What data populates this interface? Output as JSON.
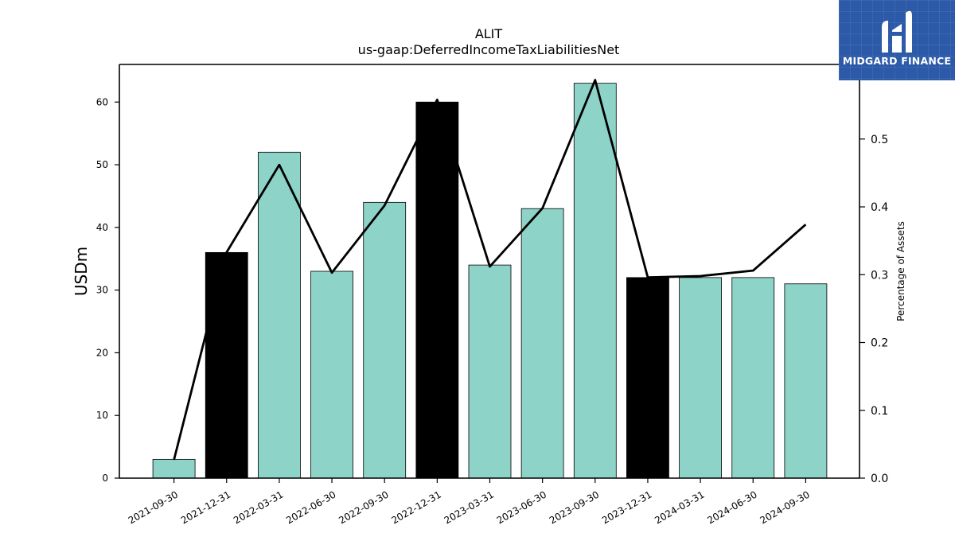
{
  "chart_data": {
    "type": "bar",
    "title": "ALIT",
    "subtitle": "us-gaap:DeferredIncomeTaxLiabilitiesNet",
    "ylabel": "USDm",
    "y2label": "Percentage of Assets",
    "categories": [
      "2021-09-30",
      "2021-12-31",
      "2022-03-31",
      "2022-06-30",
      "2022-09-30",
      "2022-12-31",
      "2023-03-31",
      "2023-06-30",
      "2023-09-30",
      "2023-12-31",
      "2024-03-31",
      "2024-06-30",
      "2024-09-30"
    ],
    "values": [
      3,
      36,
      52,
      33,
      44,
      60,
      34,
      43,
      63,
      32,
      32,
      32,
      31
    ],
    "bar_colors": [
      "#8dd3c7",
      "#000000",
      "#8dd3c7",
      "#8dd3c7",
      "#8dd3c7",
      "#000000",
      "#8dd3c7",
      "#8dd3c7",
      "#8dd3c7",
      "#000000",
      "#8dd3c7",
      "#8dd3c7",
      "#8dd3c7"
    ],
    "line_values": [
      0.027,
      0.333,
      0.462,
      0.303,
      0.402,
      0.558,
      0.312,
      0.398,
      0.587,
      0.296,
      0.298,
      0.306,
      0.374
    ],
    "ylim": [
      0,
      66
    ],
    "y2lim": [
      0,
      0.61
    ],
    "yticks": [
      0,
      10,
      20,
      30,
      40,
      50,
      60
    ],
    "y2ticks": [
      0.0,
      0.1,
      0.2,
      0.3,
      0.4,
      0.5
    ],
    "grid": false,
    "colors": {
      "bar": "#8dd3c7",
      "highlight": "#000000",
      "line": "#000000"
    }
  },
  "logo": {
    "text": "MIDGARD FINANCE",
    "color": "#2c5aa8"
  }
}
